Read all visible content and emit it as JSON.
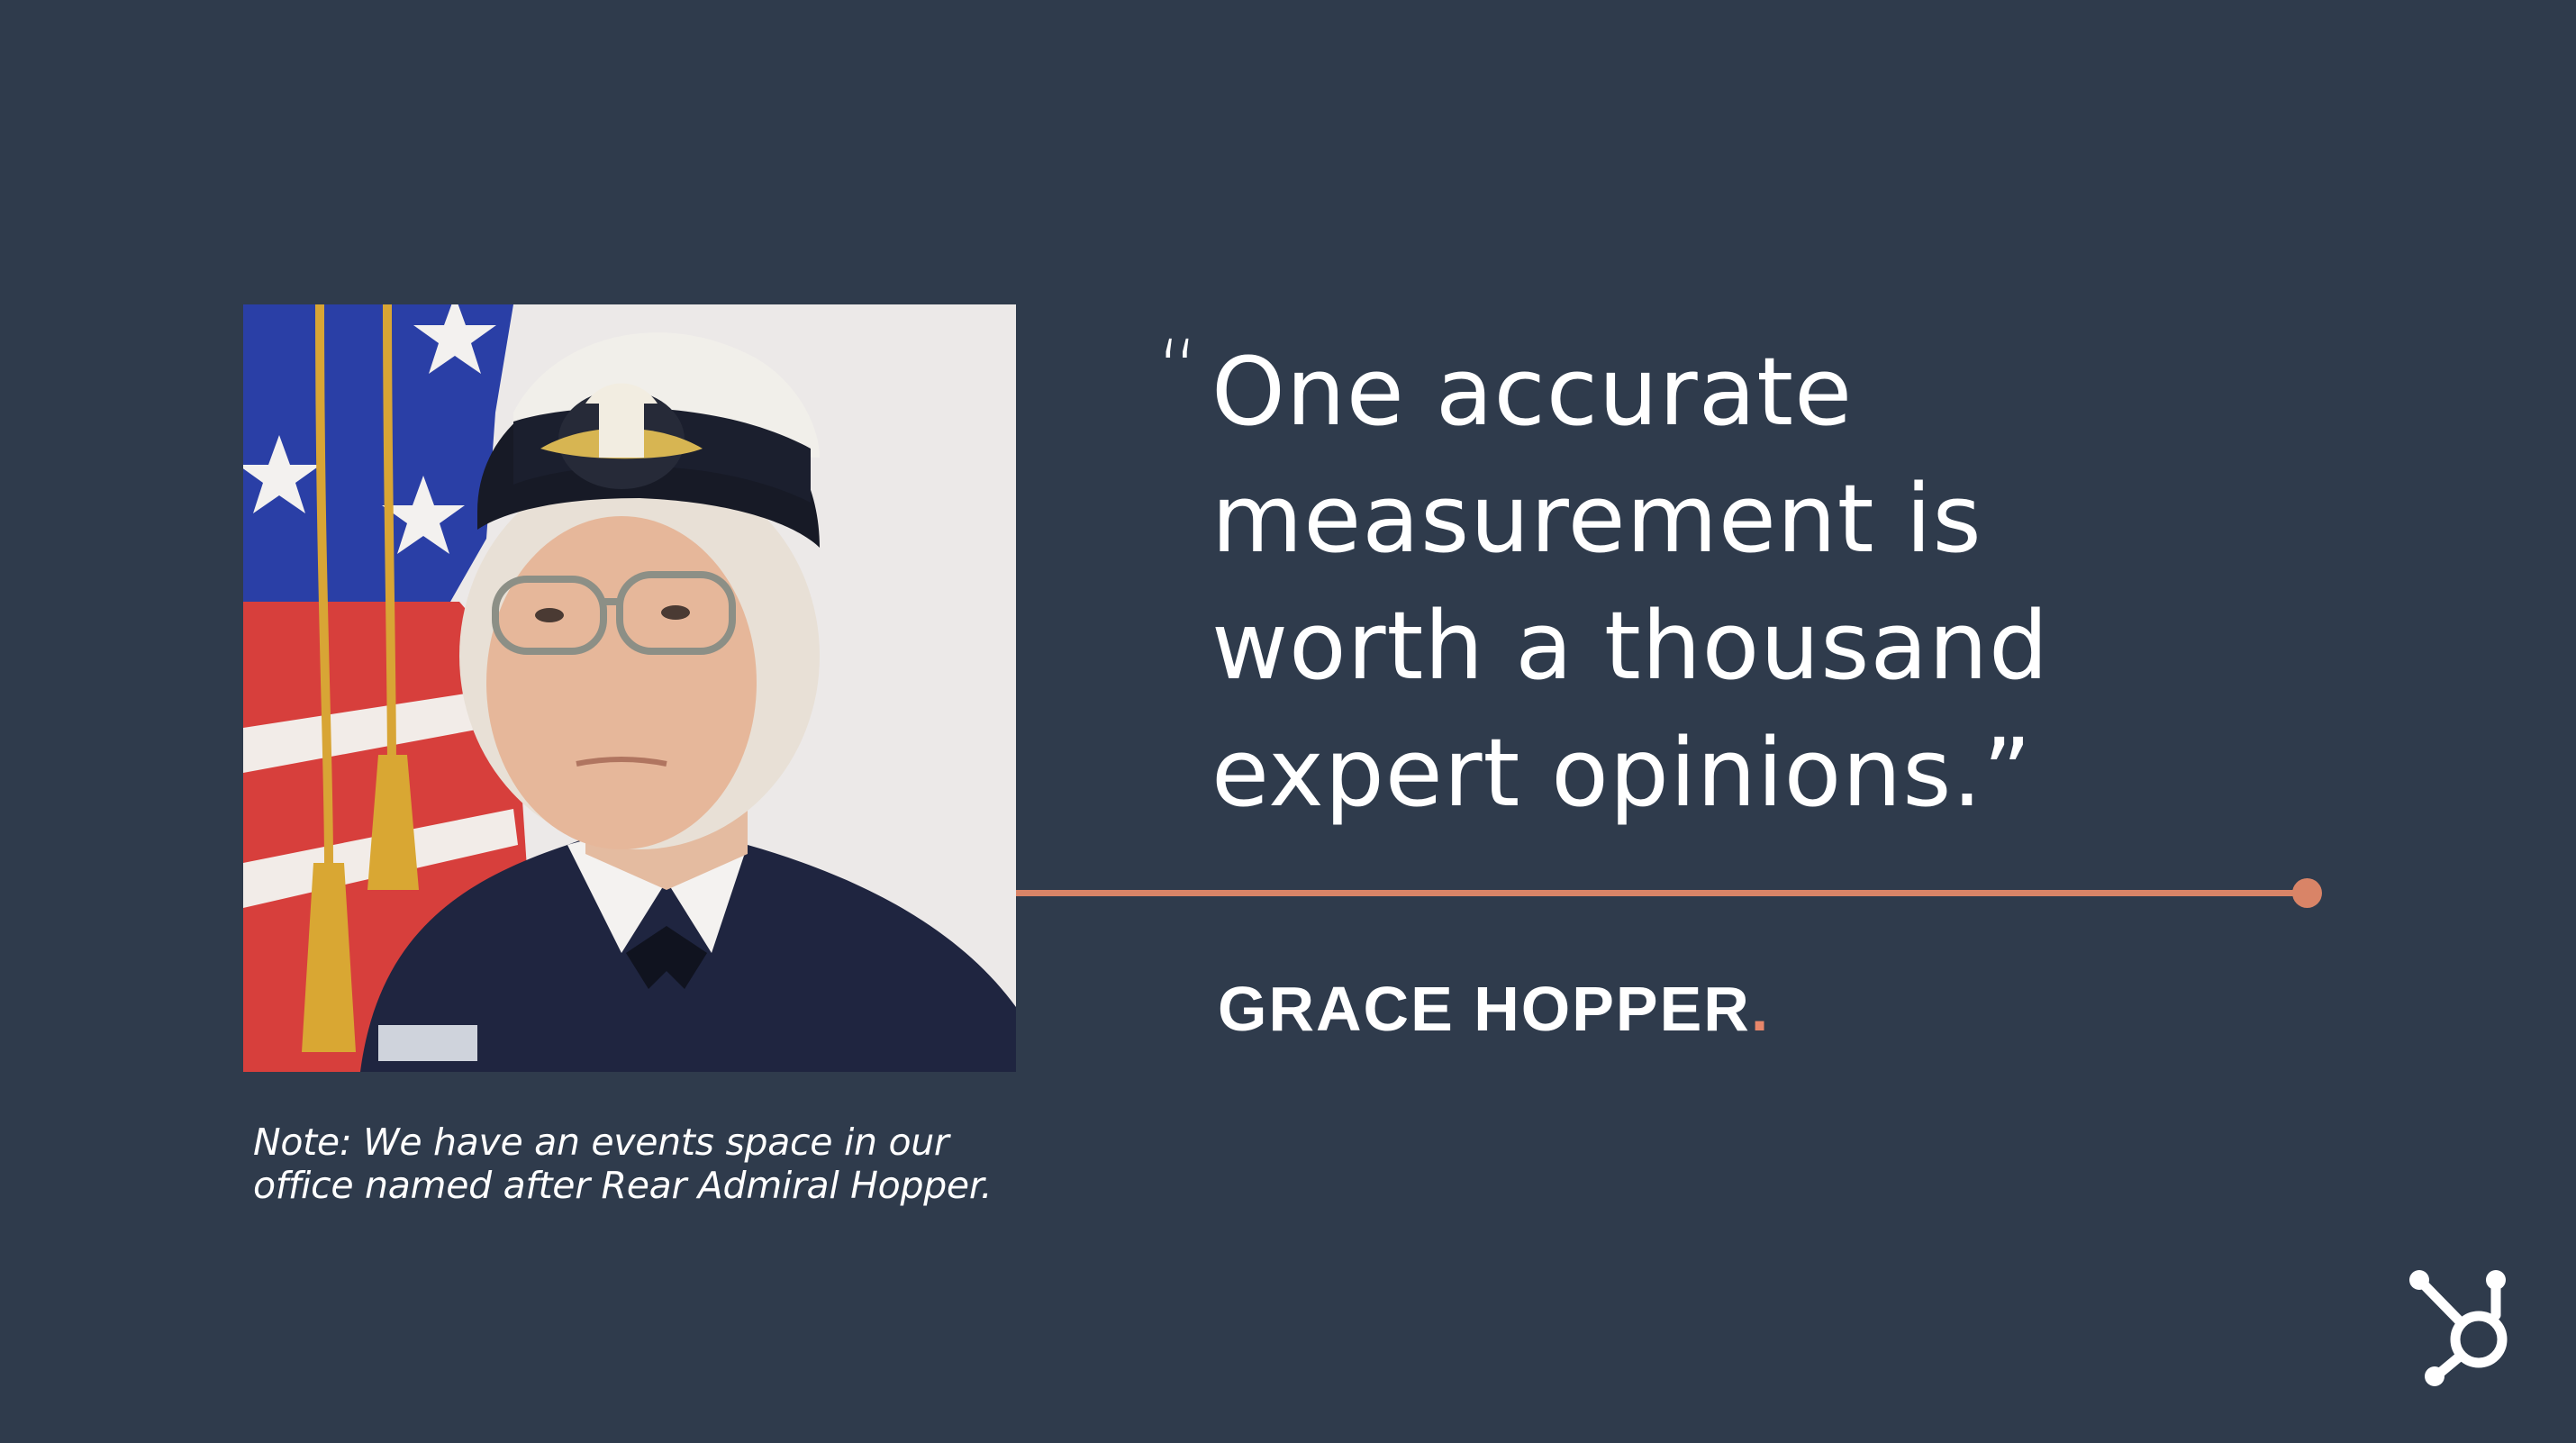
{
  "slide": {
    "background_color": "#2f3b4c",
    "accent_color": "#d98467"
  },
  "portrait": {
    "icon": "portrait-photo"
  },
  "note": {
    "line1": "Note: We have an events space in our",
    "line2": "office named after Rear Admiral Hopper."
  },
  "quote": {
    "open_mark": "“",
    "line1": "One accurate",
    "line2": "measurement is",
    "line3": "worth a thousand",
    "line4": "expert opinions.”"
  },
  "author": {
    "name": "GRACE HOPPER",
    "period": "."
  },
  "logo": {
    "icon": "hubspot-sprocket-icon"
  }
}
